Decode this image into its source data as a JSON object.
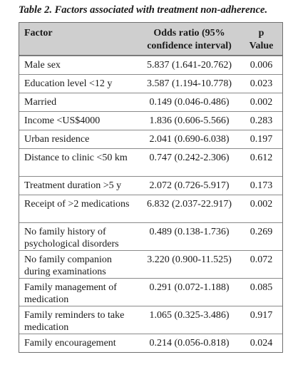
{
  "caption": "Table 2. Factors associated with treatment non-adherence.",
  "headers": {
    "factor": "Factor",
    "odds_line1": "Odds ratio (95%",
    "odds_line2": "confidence interval)",
    "p_line1": "p",
    "p_line2": "Value"
  },
  "rows": [
    {
      "factor": "Male sex",
      "odds": "5.837 (1.641-20.762)",
      "p": "0.006"
    },
    {
      "factor": "Education level <12 y",
      "odds": "3.587 (1.194-10.778)",
      "p": "0.023"
    },
    {
      "factor": "Married",
      "odds": "0.149 (0.046-0.486)",
      "p": "0.002"
    },
    {
      "factor": "Income <US$4000",
      "odds": "1.836 (0.606-5.566)",
      "p": "0.283"
    },
    {
      "factor": "Urban residence",
      "odds": "2.041 (0.690-6.038)",
      "p": "0.197"
    },
    {
      "factor": "Distance to clinic <50 km",
      "odds": "0.747 (0.242-2.306)",
      "p": "0.612"
    },
    {
      "factor": "Treatment duration >5 y",
      "odds": "2.072 (0.726-5.917)",
      "p": "0.173"
    },
    {
      "factor": "Receipt of >2 medications",
      "odds": "6.832 (2.037-22.917)",
      "p": "0.002"
    },
    {
      "factor": "No family history of psychological disorders",
      "odds": "0.489 (0.138-1.736)",
      "p": "0.269"
    },
    {
      "factor": "No family companion during examinations",
      "odds": "3.220 (0.900-11.525)",
      "p": "0.072"
    },
    {
      "factor": "Family management of medication",
      "odds": "0.291 (0.072-1.188)",
      "p": "0.085"
    },
    {
      "factor": "Family reminders to take medication",
      "odds": "1.065 (0.325-3.486)",
      "p": "0.917"
    },
    {
      "factor": "Family encouragement",
      "odds": "0.214 (0.056-0.818)",
      "p": "0.024"
    }
  ]
}
